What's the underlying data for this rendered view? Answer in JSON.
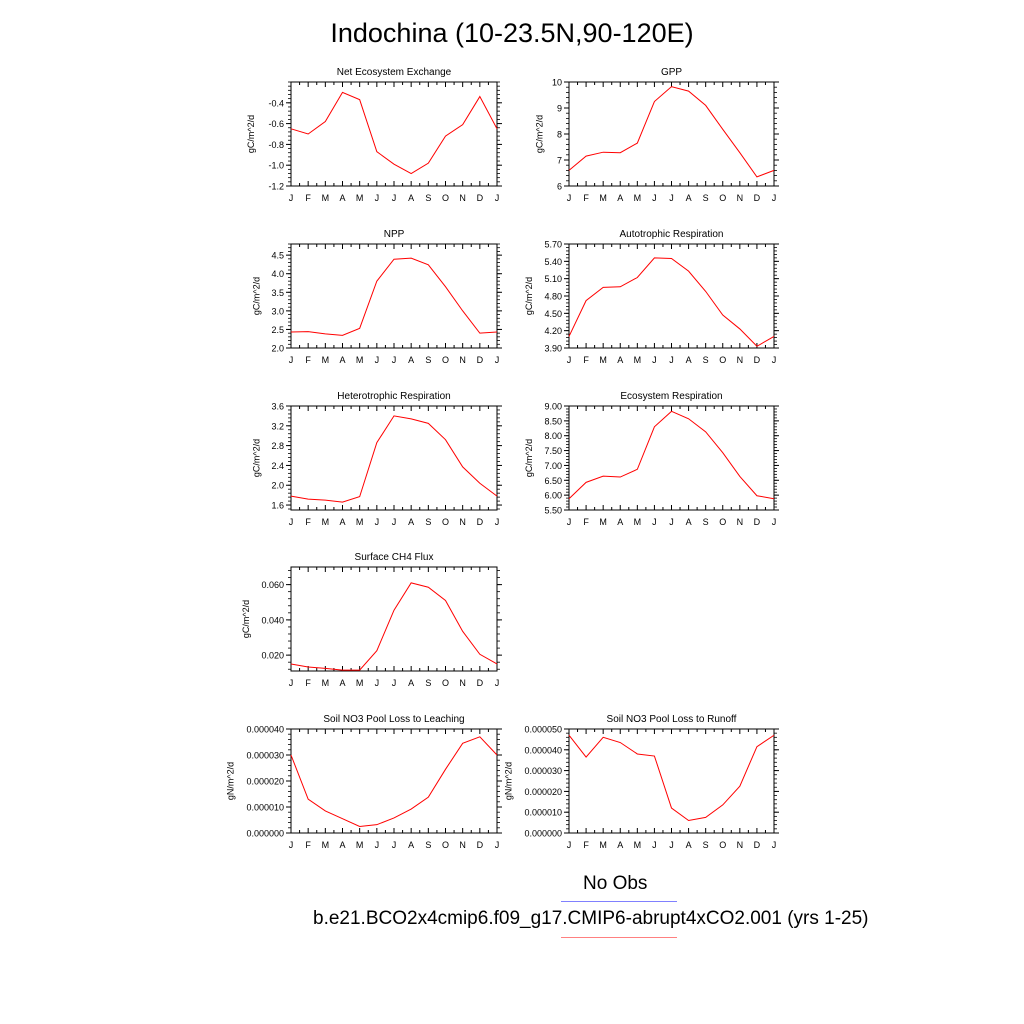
{
  "title": "Indochina (10-23.5N,90-120E)",
  "legend": {
    "items": [
      {
        "label": "No Obs",
        "color": "#8080ff"
      },
      {
        "label": "b.e21.BCO2x4cmip6.f09_g17.CMIP6-abrupt4xCO2.001 (yrs 1-25)",
        "color": "#ff8080"
      }
    ]
  },
  "series_color": "#ff0000",
  "chart_data": [
    {
      "type": "line",
      "title": "Net Ecosystem Exchange",
      "ylabel": "gC/m^2/d",
      "categories": [
        "J",
        "F",
        "M",
        "A",
        "M",
        "J",
        "J",
        "A",
        "S",
        "O",
        "N",
        "D",
        "J"
      ],
      "values": [
        -0.65,
        -0.7,
        -0.58,
        -0.3,
        -0.37,
        -0.87,
        -0.99,
        -1.08,
        -0.98,
        -0.72,
        -0.61,
        -0.34,
        -0.65
      ],
      "ylim": [
        -1.2,
        -0.2
      ],
      "yticks": [
        -1.2,
        -1.0,
        -0.8,
        -0.6,
        -0.4
      ],
      "ytick_labels": [
        "-1.2",
        "-1.0",
        "-0.8",
        "-0.6",
        "-0.4"
      ]
    },
    {
      "type": "line",
      "title": "GPP",
      "ylabel": "gC/m^2/d",
      "categories": [
        "J",
        "F",
        "M",
        "A",
        "M",
        "J",
        "J",
        "A",
        "S",
        "O",
        "N",
        "D",
        "J"
      ],
      "values": [
        6.6,
        7.15,
        7.3,
        7.28,
        7.65,
        9.25,
        9.82,
        9.65,
        9.1,
        8.18,
        7.28,
        6.35,
        6.6
      ],
      "ylim": [
        6,
        10
      ],
      "yticks": [
        6,
        7,
        8,
        9,
        10
      ],
      "ytick_labels": [
        "6",
        "7",
        "8",
        "9",
        "10"
      ]
    },
    {
      "type": "line",
      "title": "NPP",
      "ylabel": "gC/m^2/d",
      "categories": [
        "J",
        "F",
        "M",
        "A",
        "M",
        "J",
        "J",
        "A",
        "S",
        "O",
        "N",
        "D",
        "J"
      ],
      "values": [
        2.43,
        2.44,
        2.38,
        2.34,
        2.53,
        3.8,
        4.39,
        4.42,
        4.24,
        3.65,
        3.0,
        2.4,
        2.43
      ],
      "ylim": [
        2.0,
        4.8
      ],
      "yticks": [
        2.0,
        2.5,
        3.0,
        3.5,
        4.0,
        4.5
      ],
      "ytick_labels": [
        "2.0",
        "2.5",
        "3.0",
        "3.5",
        "4.0",
        "4.5"
      ]
    },
    {
      "type": "line",
      "title": "Autotrophic Respiration",
      "ylabel": "gC/m^2/d",
      "categories": [
        "J",
        "F",
        "M",
        "A",
        "M",
        "J",
        "J",
        "A",
        "S",
        "O",
        "N",
        "D",
        "J"
      ],
      "values": [
        4.1,
        4.72,
        4.95,
        4.96,
        5.12,
        5.46,
        5.45,
        5.23,
        4.88,
        4.47,
        4.23,
        3.93,
        4.1
      ],
      "ylim": [
        3.9,
        5.7
      ],
      "yticks": [
        3.9,
        4.2,
        4.5,
        4.8,
        5.1,
        5.4,
        5.7
      ],
      "ytick_labels": [
        "3.90",
        "4.20",
        "4.50",
        "4.80",
        "5.10",
        "5.40",
        "5.70"
      ]
    },
    {
      "type": "line",
      "title": "Heterotrophic Respiration",
      "ylabel": "gC/m^2/d",
      "categories": [
        "J",
        "F",
        "M",
        "A",
        "M",
        "J",
        "J",
        "A",
        "S",
        "O",
        "N",
        "D",
        "J"
      ],
      "values": [
        1.78,
        1.72,
        1.7,
        1.66,
        1.77,
        2.86,
        3.4,
        3.34,
        3.25,
        2.92,
        2.37,
        2.04,
        1.78
      ],
      "ylim": [
        1.5,
        3.6
      ],
      "yticks": [
        1.6,
        2.0,
        2.4,
        2.8,
        3.2,
        3.6
      ],
      "ytick_labels": [
        "1.6",
        "2.0",
        "2.4",
        "2.8",
        "3.2",
        "3.6"
      ]
    },
    {
      "type": "line",
      "title": "Ecosystem Respiration",
      "ylabel": "gC/m^2/d",
      "categories": [
        "J",
        "F",
        "M",
        "A",
        "M",
        "J",
        "J",
        "A",
        "S",
        "O",
        "N",
        "D",
        "J"
      ],
      "values": [
        5.88,
        6.43,
        6.64,
        6.61,
        6.87,
        8.3,
        8.82,
        8.57,
        8.13,
        7.43,
        6.63,
        5.98,
        5.88
      ],
      "ylim": [
        5.5,
        9.0
      ],
      "yticks": [
        5.5,
        6.0,
        6.5,
        7.0,
        7.5,
        8.0,
        8.5,
        9.0
      ],
      "ytick_labels": [
        "5.50",
        "6.00",
        "6.50",
        "7.00",
        "7.50",
        "8.00",
        "8.50",
        "9.00"
      ]
    },
    {
      "type": "line",
      "title": "Surface CH4 Flux",
      "ylabel": "gC/m^2/d",
      "categories": [
        "J",
        "F",
        "M",
        "A",
        "M",
        "J",
        "J",
        "A",
        "S",
        "O",
        "N",
        "D",
        "J"
      ],
      "values": [
        0.015,
        0.0133,
        0.0125,
        0.0115,
        0.0115,
        0.0225,
        0.0455,
        0.061,
        0.0585,
        0.051,
        0.0335,
        0.0205,
        0.015
      ],
      "ylim": [
        0.011,
        0.07
      ],
      "yticks": [
        0.02,
        0.04,
        0.06
      ],
      "ytick_labels": [
        "0.020",
        "0.040",
        "0.060"
      ]
    },
    {
      "type": "line",
      "title": "Soil NO3 Pool Loss to Leaching",
      "ylabel": "gN/m^2/d",
      "categories": [
        "J",
        "F",
        "M",
        "A",
        "M",
        "J",
        "J",
        "A",
        "S",
        "O",
        "N",
        "D",
        "J"
      ],
      "values": [
        3e-05,
        1.3e-05,
        8.5e-06,
        5.5e-06,
        2.5e-06,
        3.2e-06,
        5.8e-06,
        9.2e-06,
        1.38e-05,
        2.45e-05,
        3.45e-05,
        3.7e-05,
        3e-05
      ],
      "ylim": [
        0,
        4e-05
      ],
      "yticks": [
        0,
        1e-05,
        2e-05,
        3e-05,
        4e-05
      ],
      "ytick_labels": [
        "0.000000",
        "0.000010",
        "0.000020",
        "0.000030",
        "0.000040"
      ]
    },
    {
      "type": "line",
      "title": "Soil NO3 Pool Loss to Runoff",
      "ylabel": "gN/m^2/d",
      "categories": [
        "J",
        "F",
        "M",
        "A",
        "M",
        "J",
        "J",
        "A",
        "S",
        "O",
        "N",
        "D",
        "J"
      ],
      "values": [
        4.7e-05,
        3.65e-05,
        4.6e-05,
        4.35e-05,
        3.8e-05,
        3.7e-05,
        1.2e-05,
        6e-06,
        7.5e-06,
        1.35e-05,
        2.25e-05,
        4.15e-05,
        4.7e-05
      ],
      "ylim": [
        0,
        5e-05
      ],
      "yticks": [
        0,
        1e-05,
        2e-05,
        3e-05,
        4e-05,
        5e-05
      ],
      "ytick_labels": [
        "0.000000",
        "0.000010",
        "0.000020",
        "0.000030",
        "0.000040",
        "0.000050"
      ]
    }
  ]
}
